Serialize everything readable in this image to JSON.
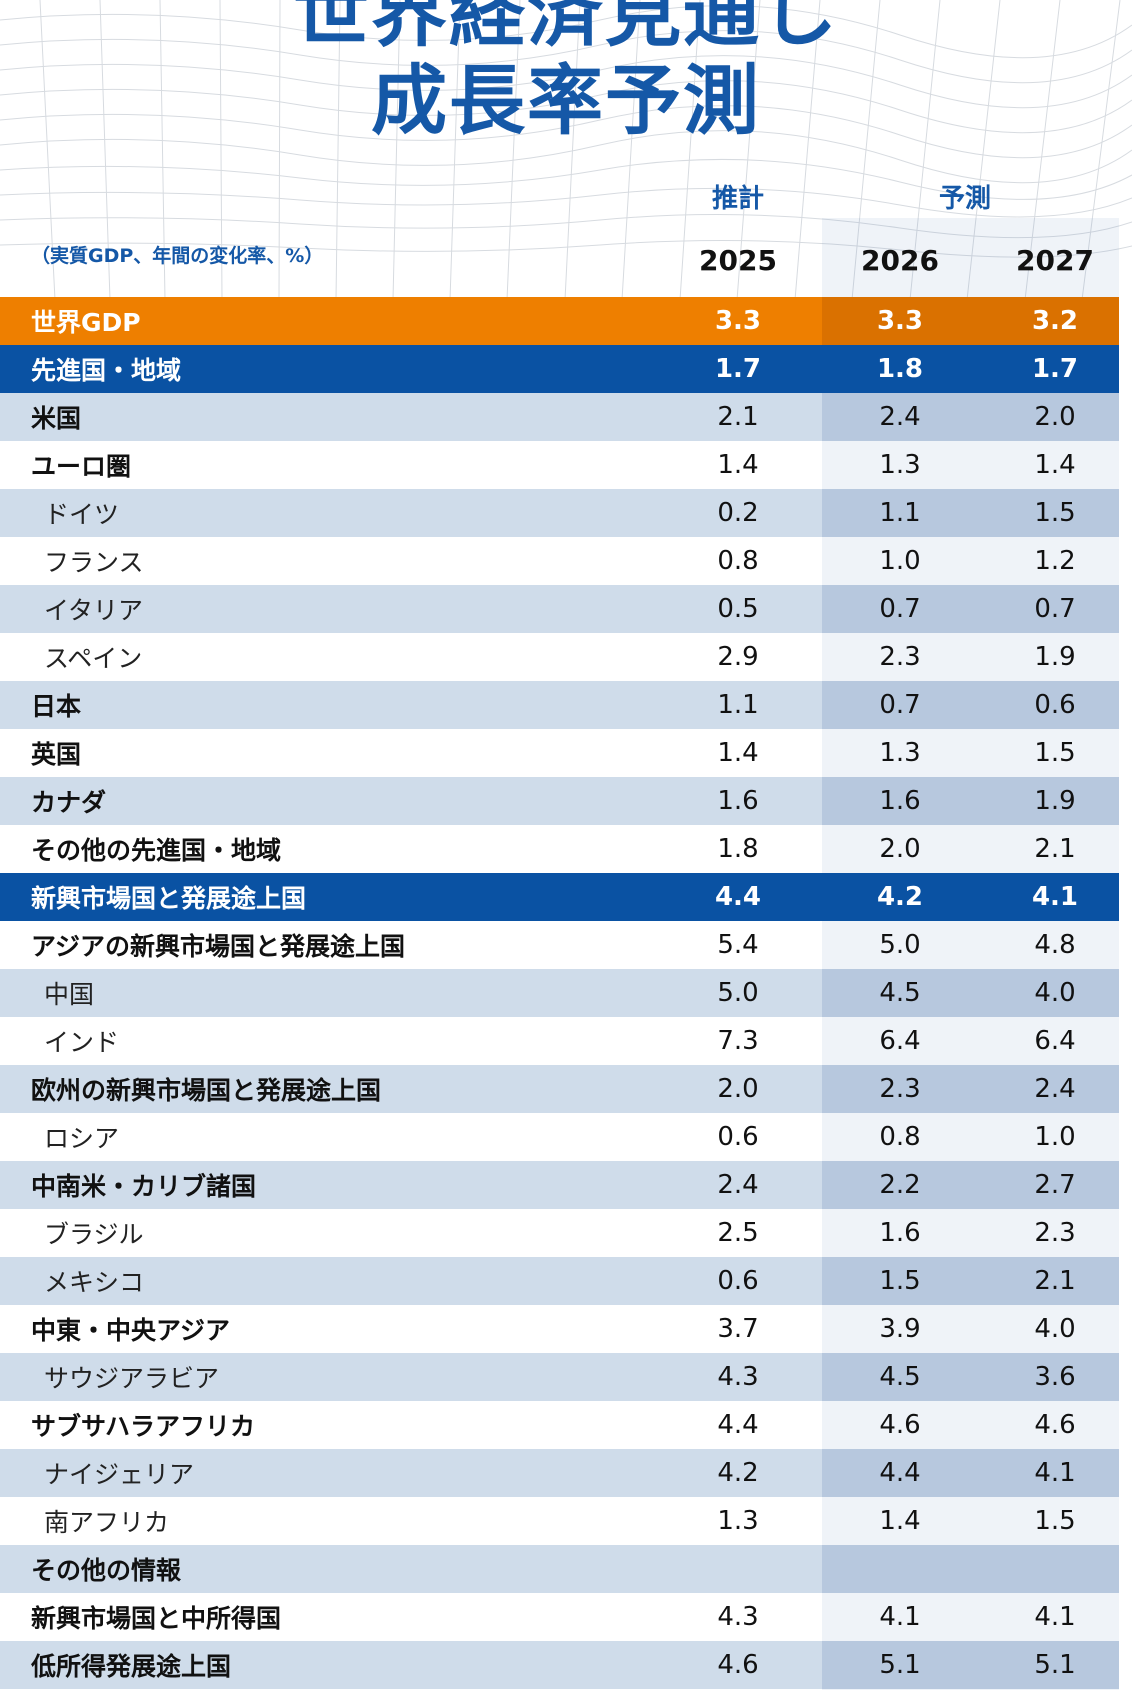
{
  "title": {
    "line1": "世界経済見通し",
    "line2": "成長率予測"
  },
  "header": {
    "estimate_label": "推計",
    "forecast_label": "予測",
    "units": "（実質GDP、年間の変化率、%）",
    "years": [
      "2025",
      "2026",
      "2027"
    ]
  },
  "colors": {
    "accent_blue": "#1558a7",
    "orange": "#ee7f00",
    "group_blue": "#0a52a3",
    "light_row": "#cfdcea"
  },
  "rows": [
    {
      "label": "世界GDP",
      "v": [
        "3.3",
        "3.3",
        "3.2"
      ],
      "style": "world"
    },
    {
      "label": "先進国・地域",
      "v": [
        "1.7",
        "1.8",
        "1.7"
      ],
      "style": "group"
    },
    {
      "label": "米国",
      "v": [
        "2.1",
        "2.4",
        "2.0"
      ],
      "style": "bold"
    },
    {
      "label": "ユーロ圏",
      "v": [
        "1.4",
        "1.3",
        "1.4"
      ],
      "style": "bold"
    },
    {
      "label": "ドイツ",
      "v": [
        "0.2",
        "1.1",
        "1.5"
      ],
      "style": "sub"
    },
    {
      "label": "フランス",
      "v": [
        "0.8",
        "1.0",
        "1.2"
      ],
      "style": "sub"
    },
    {
      "label": "イタリア",
      "v": [
        "0.5",
        "0.7",
        "0.7"
      ],
      "style": "sub"
    },
    {
      "label": "スペイン",
      "v": [
        "2.9",
        "2.3",
        "1.9"
      ],
      "style": "sub"
    },
    {
      "label": "日本",
      "v": [
        "1.1",
        "0.7",
        "0.6"
      ],
      "style": "bold"
    },
    {
      "label": "英国",
      "v": [
        "1.4",
        "1.3",
        "1.5"
      ],
      "style": "bold"
    },
    {
      "label": "カナダ",
      "v": [
        "1.6",
        "1.6",
        "1.9"
      ],
      "style": "bold"
    },
    {
      "label": "その他の先進国・地域",
      "v": [
        "1.8",
        "2.0",
        "2.1"
      ],
      "style": "bold"
    },
    {
      "label": "新興市場国と発展途上国",
      "v": [
        "4.4",
        "4.2",
        "4.1"
      ],
      "style": "group"
    },
    {
      "label": "アジアの新興市場国と発展途上国",
      "v": [
        "5.4",
        "5.0",
        "4.8"
      ],
      "style": "bold"
    },
    {
      "label": "中国",
      "v": [
        "5.0",
        "4.5",
        "4.0"
      ],
      "style": "sub"
    },
    {
      "label": "インド",
      "v": [
        "7.3",
        "6.4",
        "6.4"
      ],
      "style": "sub"
    },
    {
      "label": "欧州の新興市場国と発展途上国",
      "v": [
        "2.0",
        "2.3",
        "2.4"
      ],
      "style": "bold"
    },
    {
      "label": "ロシア",
      "v": [
        "0.6",
        "0.8",
        "1.0"
      ],
      "style": "sub"
    },
    {
      "label": "中南米・カリブ諸国",
      "v": [
        "2.4",
        "2.2",
        "2.7"
      ],
      "style": "bold"
    },
    {
      "label": "ブラジル",
      "v": [
        "2.5",
        "1.6",
        "2.3"
      ],
      "style": "sub"
    },
    {
      "label": "メキシコ",
      "v": [
        "0.6",
        "1.5",
        "2.1"
      ],
      "style": "sub"
    },
    {
      "label": "中東・中央アジア",
      "v": [
        "3.7",
        "3.9",
        "4.0"
      ],
      "style": "bold"
    },
    {
      "label": "サウジアラビア",
      "v": [
        "4.3",
        "4.5",
        "3.6"
      ],
      "style": "sub"
    },
    {
      "label": "サブサハラアフリカ",
      "v": [
        "4.4",
        "4.6",
        "4.6"
      ],
      "style": "bold"
    },
    {
      "label": "ナイジェリア",
      "v": [
        "4.2",
        "4.4",
        "4.1"
      ],
      "style": "sub"
    },
    {
      "label": "南アフリカ",
      "v": [
        "1.3",
        "1.4",
        "1.5"
      ],
      "style": "sub"
    },
    {
      "label": "その他の情報",
      "v": [
        "",
        "",
        ""
      ],
      "style": "bold"
    },
    {
      "label": "新興市場国と中所得国",
      "v": [
        "4.3",
        "4.1",
        "4.1"
      ],
      "style": "bold"
    },
    {
      "label": "低所得発展途上国",
      "v": [
        "4.6",
        "5.1",
        "5.1"
      ],
      "style": "bold"
    }
  ]
}
